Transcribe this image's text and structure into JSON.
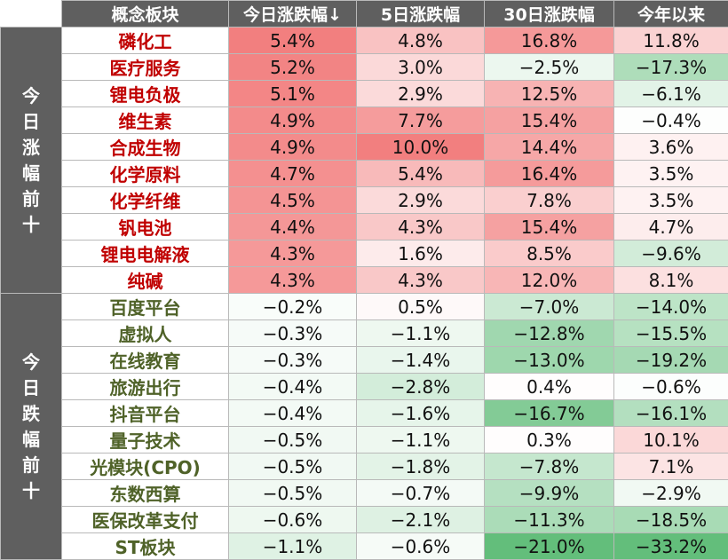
{
  "chart_data": {
    "type": "heatmap",
    "columns": [
      "概念板块",
      "今日涨跌幅↓",
      "5日涨跌幅",
      "30日涨跌幅",
      "今年以来"
    ],
    "colors": {
      "header_bg": "#5f5f5f",
      "header_text": "#ffffff",
      "gainer_name": "#c00000",
      "loser_name": "#4f6228",
      "positive_max": "#f27f7f",
      "negative_max": "#63be7b",
      "neutral": "#ffffff"
    },
    "groups": [
      {
        "label": "今日涨幅前十",
        "rows": [
          {
            "name": "磷化工",
            "values": [
              "5.4%",
              "4.8%",
              "16.8%",
              "11.8%"
            ]
          },
          {
            "name": "医疗服务",
            "values": [
              "5.2%",
              "3.0%",
              "−2.5%",
              "−17.3%"
            ]
          },
          {
            "name": "锂电负极",
            "values": [
              "5.1%",
              "2.9%",
              "12.5%",
              "−6.1%"
            ]
          },
          {
            "name": "维生素",
            "values": [
              "4.9%",
              "7.7%",
              "15.4%",
              "−0.4%"
            ]
          },
          {
            "name": "合成生物",
            "values": [
              "4.9%",
              "10.0%",
              "14.4%",
              "3.6%"
            ]
          },
          {
            "name": "化学原料",
            "values": [
              "4.7%",
              "5.4%",
              "16.4%",
              "3.5%"
            ]
          },
          {
            "name": "化学纤维",
            "values": [
              "4.5%",
              "2.9%",
              "7.8%",
              "3.5%"
            ]
          },
          {
            "name": "钒电池",
            "values": [
              "4.4%",
              "4.3%",
              "15.4%",
              "4.7%"
            ]
          },
          {
            "name": "锂电电解液",
            "values": [
              "4.3%",
              "1.6%",
              "8.5%",
              "−9.6%"
            ]
          },
          {
            "name": "纯碱",
            "values": [
              "4.3%",
              "4.3%",
              "12.0%",
              "8.1%"
            ]
          }
        ]
      },
      {
        "label": "今日跌幅前十",
        "rows": [
          {
            "name": "百度平台",
            "values": [
              "−0.2%",
              "0.5%",
              "−7.0%",
              "−14.0%"
            ]
          },
          {
            "name": "虚拟人",
            "values": [
              "−0.3%",
              "−1.1%",
              "−12.8%",
              "−15.5%"
            ]
          },
          {
            "name": "在线教育",
            "values": [
              "−0.3%",
              "−1.4%",
              "−13.0%",
              "−19.2%"
            ]
          },
          {
            "name": "旅游出行",
            "values": [
              "−0.4%",
              "−2.8%",
              "0.4%",
              "−0.6%"
            ]
          },
          {
            "name": "抖音平台",
            "values": [
              "−0.4%",
              "−1.6%",
              "−16.7%",
              "−16.1%"
            ]
          },
          {
            "name": "量子技术",
            "values": [
              "−0.5%",
              "−1.1%",
              "0.3%",
              "10.1%"
            ]
          },
          {
            "name": "光模块(CPO)",
            "values": [
              "−0.5%",
              "−1.8%",
              "−7.8%",
              "7.1%"
            ]
          },
          {
            "name": "东数西算",
            "values": [
              "−0.5%",
              "−0.7%",
              "−9.9%",
              "−2.9%"
            ]
          },
          {
            "name": "医保改革支付",
            "values": [
              "−0.6%",
              "−2.1%",
              "−11.3%",
              "−18.5%"
            ]
          },
          {
            "name": "ST板块",
            "values": [
              "−1.1%",
              "−0.6%",
              "−21.0%",
              "−33.2%"
            ]
          }
        ]
      }
    ]
  }
}
